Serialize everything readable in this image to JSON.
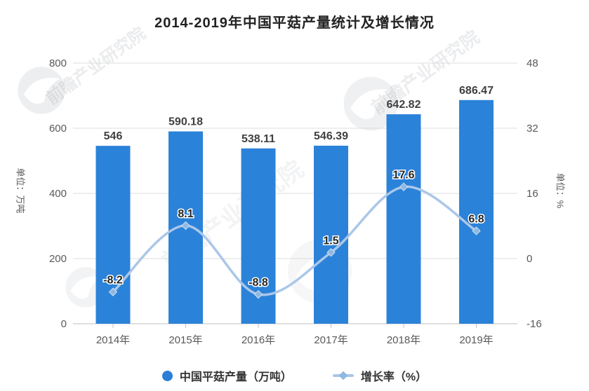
{
  "title": "2014-2019年中国平菇产量统计及增长情况",
  "watermark": {
    "text": "前瞻产业研究院"
  },
  "chart_data": {
    "type": "bar+line combo",
    "categories": [
      "2014年",
      "2015年",
      "2016年",
      "2017年",
      "2018年",
      "2019年"
    ],
    "series": [
      {
        "name": "中国平菇产量（万吨）",
        "type": "bar",
        "axis": "left",
        "values": [
          546,
          590.18,
          538.11,
          546.39,
          642.82,
          686.47
        ],
        "labels": [
          "546",
          "590.18",
          "538.11",
          "546.39",
          "642.82",
          "686.47"
        ],
        "color": "#2b82d9"
      },
      {
        "name": "增长率（%）",
        "type": "line",
        "axis": "right",
        "smooth": true,
        "values": [
          -8.2,
          8.1,
          -8.8,
          1.5,
          17.6,
          6.8
        ],
        "labels": [
          "-8.2",
          "8.1",
          "-8.8",
          "1.5",
          "17.6",
          "6.8"
        ],
        "color": "#abc7e8",
        "marker": "diamond",
        "marker_color": "#8fb8e2"
      }
    ],
    "left_axis": {
      "label": "单位：万吨",
      "min": 0,
      "max": 800,
      "ticks": [
        0,
        200,
        400,
        600,
        800
      ]
    },
    "right_axis": {
      "label": "单位：%",
      "min": -16,
      "max": 48,
      "ticks": [
        -16,
        0,
        16,
        32,
        48
      ]
    },
    "grid": true,
    "legend_position": "bottom"
  },
  "legend": {
    "items": [
      {
        "label": "中国平菇产量（万吨）",
        "marker": "circle",
        "color": "#2b7fd6"
      },
      {
        "label": "增长率（%）",
        "marker": "line-diamond",
        "color": "#a9c6e8",
        "diamond_color": "#8fb8e2"
      }
    ]
  },
  "colors": {
    "bar": "#2b82d9",
    "line": "#abc7e8",
    "marker": "#8fb8e2",
    "grid": "#dcdcdc",
    "axis_line": "#c2c2c2",
    "tick_text": "#595959",
    "bar_label": "#404040",
    "line_label": "#262626",
    "title_text": "#222222"
  }
}
